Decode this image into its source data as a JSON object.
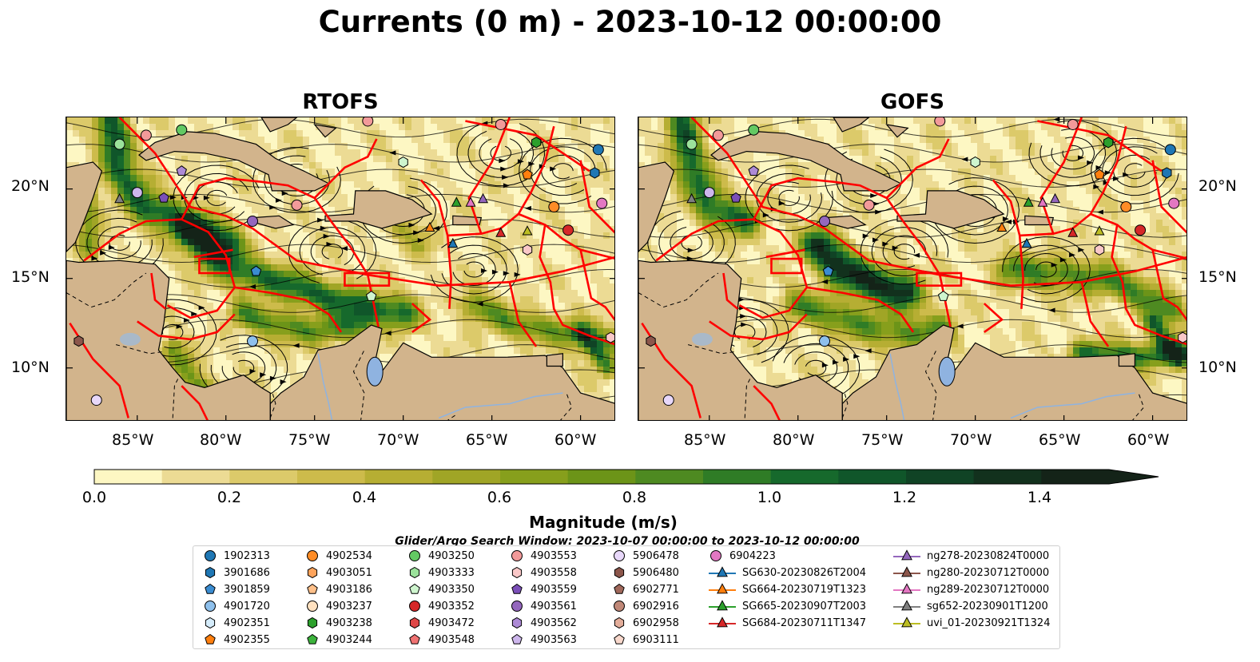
{
  "title": "Currents (0 m) - 2023-10-12 00:00:00",
  "panels": [
    {
      "title": "RTOFS"
    },
    {
      "title": "GOFS"
    }
  ],
  "axes": {
    "lon_labels": [
      "85°W",
      "80°W",
      "75°W",
      "70°W",
      "65°W",
      "60°W"
    ],
    "lat_labels": [
      "20°N",
      "15°N",
      "10°N"
    ],
    "lon_range": [
      -89,
      -58
    ],
    "lat_range": [
      7,
      24
    ]
  },
  "colorbar": {
    "title": "Magnitude (m/s)",
    "tick_labels": [
      "0.0",
      "0.2",
      "0.4",
      "0.6",
      "0.8",
      "1.0",
      "1.2",
      "1.4"
    ],
    "levels": [
      0.0,
      0.1,
      0.2,
      0.3,
      0.4,
      0.5,
      0.6,
      0.7,
      0.8,
      0.9,
      1.0,
      1.1,
      1.2,
      1.3,
      1.4,
      1.5
    ],
    "colors": [
      "#fdf7c3",
      "#ecdb94",
      "#dcca6a",
      "#cdbb4b",
      "#b6ae33",
      "#a0a526",
      "#879f1c",
      "#6c9418",
      "#4e8a21",
      "#2f7c26",
      "#16692c",
      "#10562a",
      "#104325",
      "#12311d",
      "#142318"
    ],
    "extend": "max"
  },
  "search_window": "Glider/Argo Search Window: 2023-10-07 00:00:00 to 2023-10-12 00:00:00",
  "colors": {
    "land": "#d2b48c",
    "eez_lines": "#ff0000",
    "water_bodies": "#8fb3e0",
    "streamlines": "#000000"
  },
  "legend": {
    "columns": [
      [
        {
          "label": "1902313",
          "marker": "circle",
          "color": "#1f77b4"
        },
        {
          "label": "3901686",
          "marker": "hexagon",
          "color": "#1f77b4"
        },
        {
          "label": "3901859",
          "marker": "pentagon",
          "color": "#3a8cd1"
        },
        {
          "label": "4901720",
          "marker": "circle",
          "color": "#8ec0ec"
        },
        {
          "label": "4902351",
          "marker": "hexagon",
          "color": "#d5ecfb"
        },
        {
          "label": "4902355",
          "marker": "pentagon",
          "color": "#ff7f0e"
        }
      ],
      [
        {
          "label": "4902534",
          "marker": "circle",
          "color": "#ff8c26"
        },
        {
          "label": "4903051",
          "marker": "hexagon",
          "color": "#ffa45c"
        },
        {
          "label": "4903186",
          "marker": "pentagon",
          "color": "#ffc08a"
        },
        {
          "label": "4903237",
          "marker": "circle",
          "color": "#ffe1c0"
        },
        {
          "label": "4903238",
          "marker": "hexagon",
          "color": "#2ca02c"
        },
        {
          "label": "4903244",
          "marker": "pentagon",
          "color": "#3cb33c"
        }
      ],
      [
        {
          "label": "4903250",
          "marker": "circle",
          "color": "#63c963"
        },
        {
          "label": "4903333",
          "marker": "hexagon",
          "color": "#9be29b"
        },
        {
          "label": "4903350",
          "marker": "pentagon",
          "color": "#cef5ce"
        },
        {
          "label": "4903352",
          "marker": "circle",
          "color": "#d62728"
        },
        {
          "label": "4903472",
          "marker": "hexagon",
          "color": "#e04848"
        },
        {
          "label": "4903548",
          "marker": "pentagon",
          "color": "#f07272"
        }
      ],
      [
        {
          "label": "4903553",
          "marker": "circle",
          "color": "#f29a9a"
        },
        {
          "label": "4903558",
          "marker": "hexagon",
          "color": "#fac8c8"
        },
        {
          "label": "4903559",
          "marker": "pentagon",
          "color": "#7b4fb8"
        },
        {
          "label": "4903561",
          "marker": "circle",
          "color": "#9467bd"
        },
        {
          "label": "4903562",
          "marker": "hexagon",
          "color": "#ad8ad6"
        },
        {
          "label": "4903563",
          "marker": "pentagon",
          "color": "#cdb6ec"
        }
      ],
      [
        {
          "label": "5906478",
          "marker": "circle",
          "color": "#e8d8fa"
        },
        {
          "label": "5906480",
          "marker": "hexagon",
          "color": "#8c564b"
        },
        {
          "label": "6902771",
          "marker": "pentagon",
          "color": "#a0685b"
        },
        {
          "label": "6902916",
          "marker": "circle",
          "color": "#c08878"
        },
        {
          "label": "6902958",
          "marker": "hexagon",
          "color": "#e3ad9a"
        },
        {
          "label": "6903111",
          "marker": "pentagon",
          "color": "#f8d8cc"
        }
      ],
      [
        {
          "label": "6904223",
          "marker": "circle",
          "color": "#e377c2"
        },
        {
          "label": "SG630-20230826T2004",
          "marker": "triangle-line",
          "color": "#1f77b4"
        },
        {
          "label": "SG664-20230719T1323",
          "marker": "triangle-line",
          "color": "#ff7f0e"
        },
        {
          "label": "SG665-20230907T2003",
          "marker": "triangle-line",
          "color": "#2ca02c"
        },
        {
          "label": "SG684-20230711T1347",
          "marker": "triangle-line",
          "color": "#d62728"
        }
      ],
      [
        {
          "label": "ng278-20230824T0000",
          "marker": "triangle-line",
          "color": "#9467bd"
        },
        {
          "label": "ng280-20230712T0000",
          "marker": "triangle-line",
          "color": "#8c564b"
        },
        {
          "label": "ng289-20230712T0000",
          "marker": "triangle-line",
          "color": "#e377c2"
        },
        {
          "label": "sg652-20230901T1200",
          "marker": "triangle-line",
          "color": "#7f7f7f"
        },
        {
          "label": "uvi_01-20230921T1324",
          "marker": "triangle-line",
          "color": "#bcbd22"
        }
      ]
    ]
  }
}
